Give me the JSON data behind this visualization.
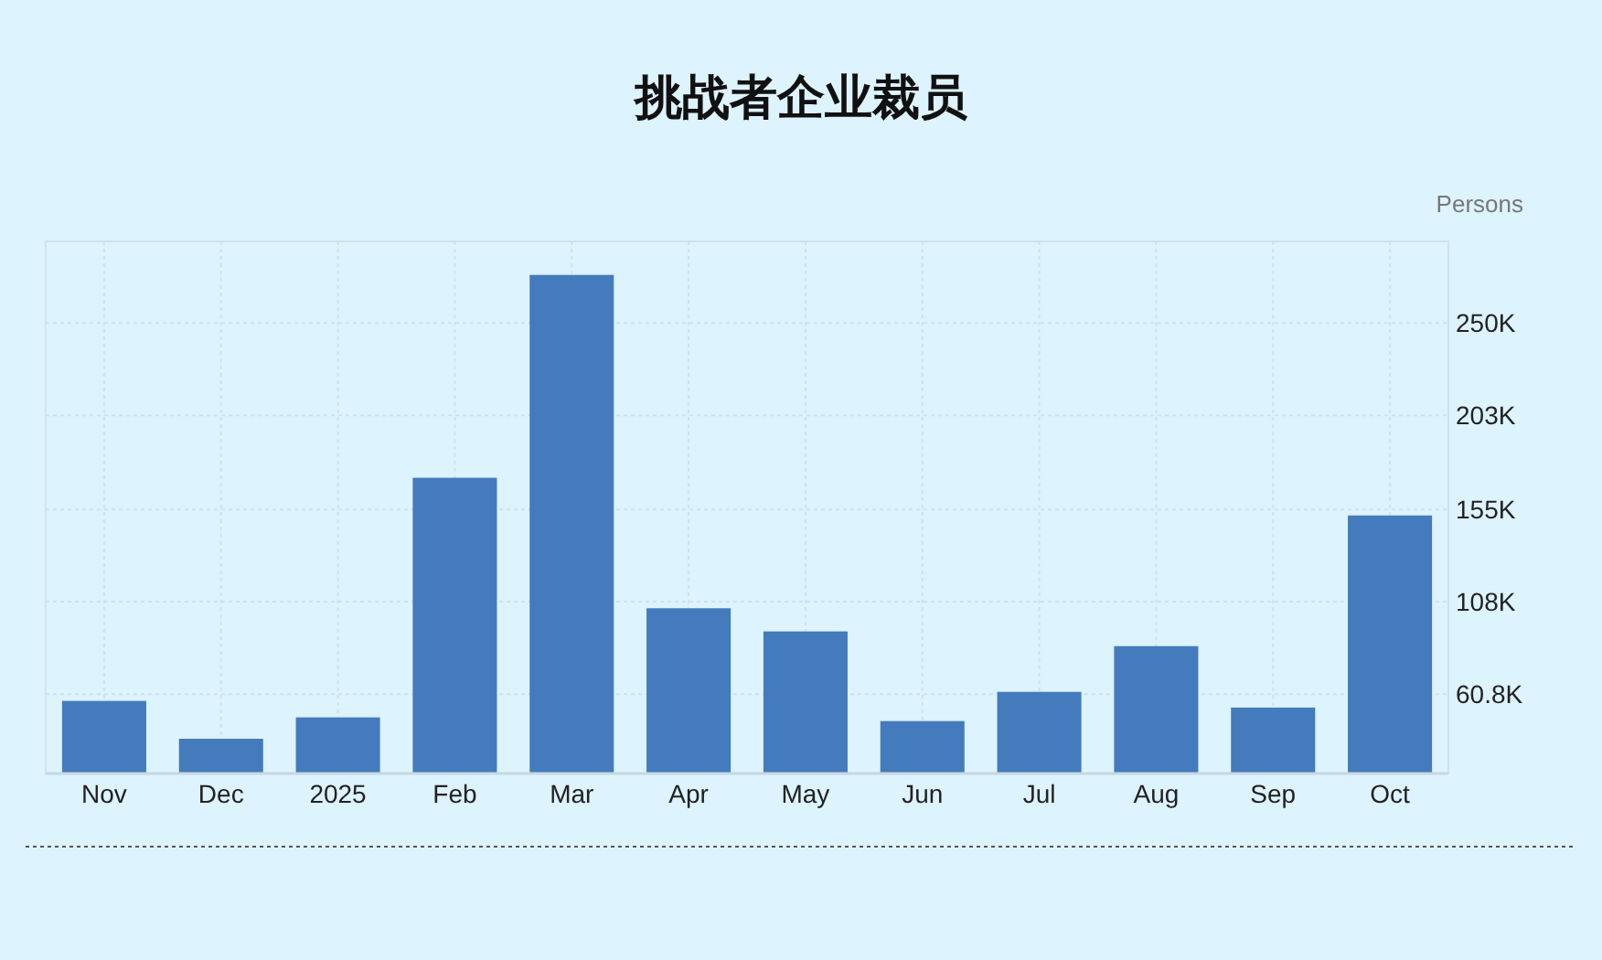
{
  "chart_data": {
    "type": "bar",
    "title": "挑战者企业裁员",
    "ylabel": "Persons",
    "categories": [
      "Nov",
      "Dec",
      "2025",
      "Feb",
      "Mar",
      "Apr",
      "May",
      "Jun",
      "Jul",
      "Aug",
      "Sep",
      "Oct"
    ],
    "values": [
      57.4,
      38.1,
      49.0,
      171.1,
      274.5,
      104.6,
      92.8,
      47.1,
      62.0,
      85.3,
      54.0,
      151.9
    ],
    "color": "#437bbd",
    "ylim": [
      20.4,
      291.6
    ],
    "yticks": [
      {
        "value": 60.8,
        "label": "60.8K"
      },
      {
        "value": 108,
        "label": "108K"
      },
      {
        "value": 155,
        "label": "155K"
      },
      {
        "value": 203,
        "label": "203K"
      },
      {
        "value": 250,
        "label": "250K"
      }
    ],
    "grid": true
  }
}
